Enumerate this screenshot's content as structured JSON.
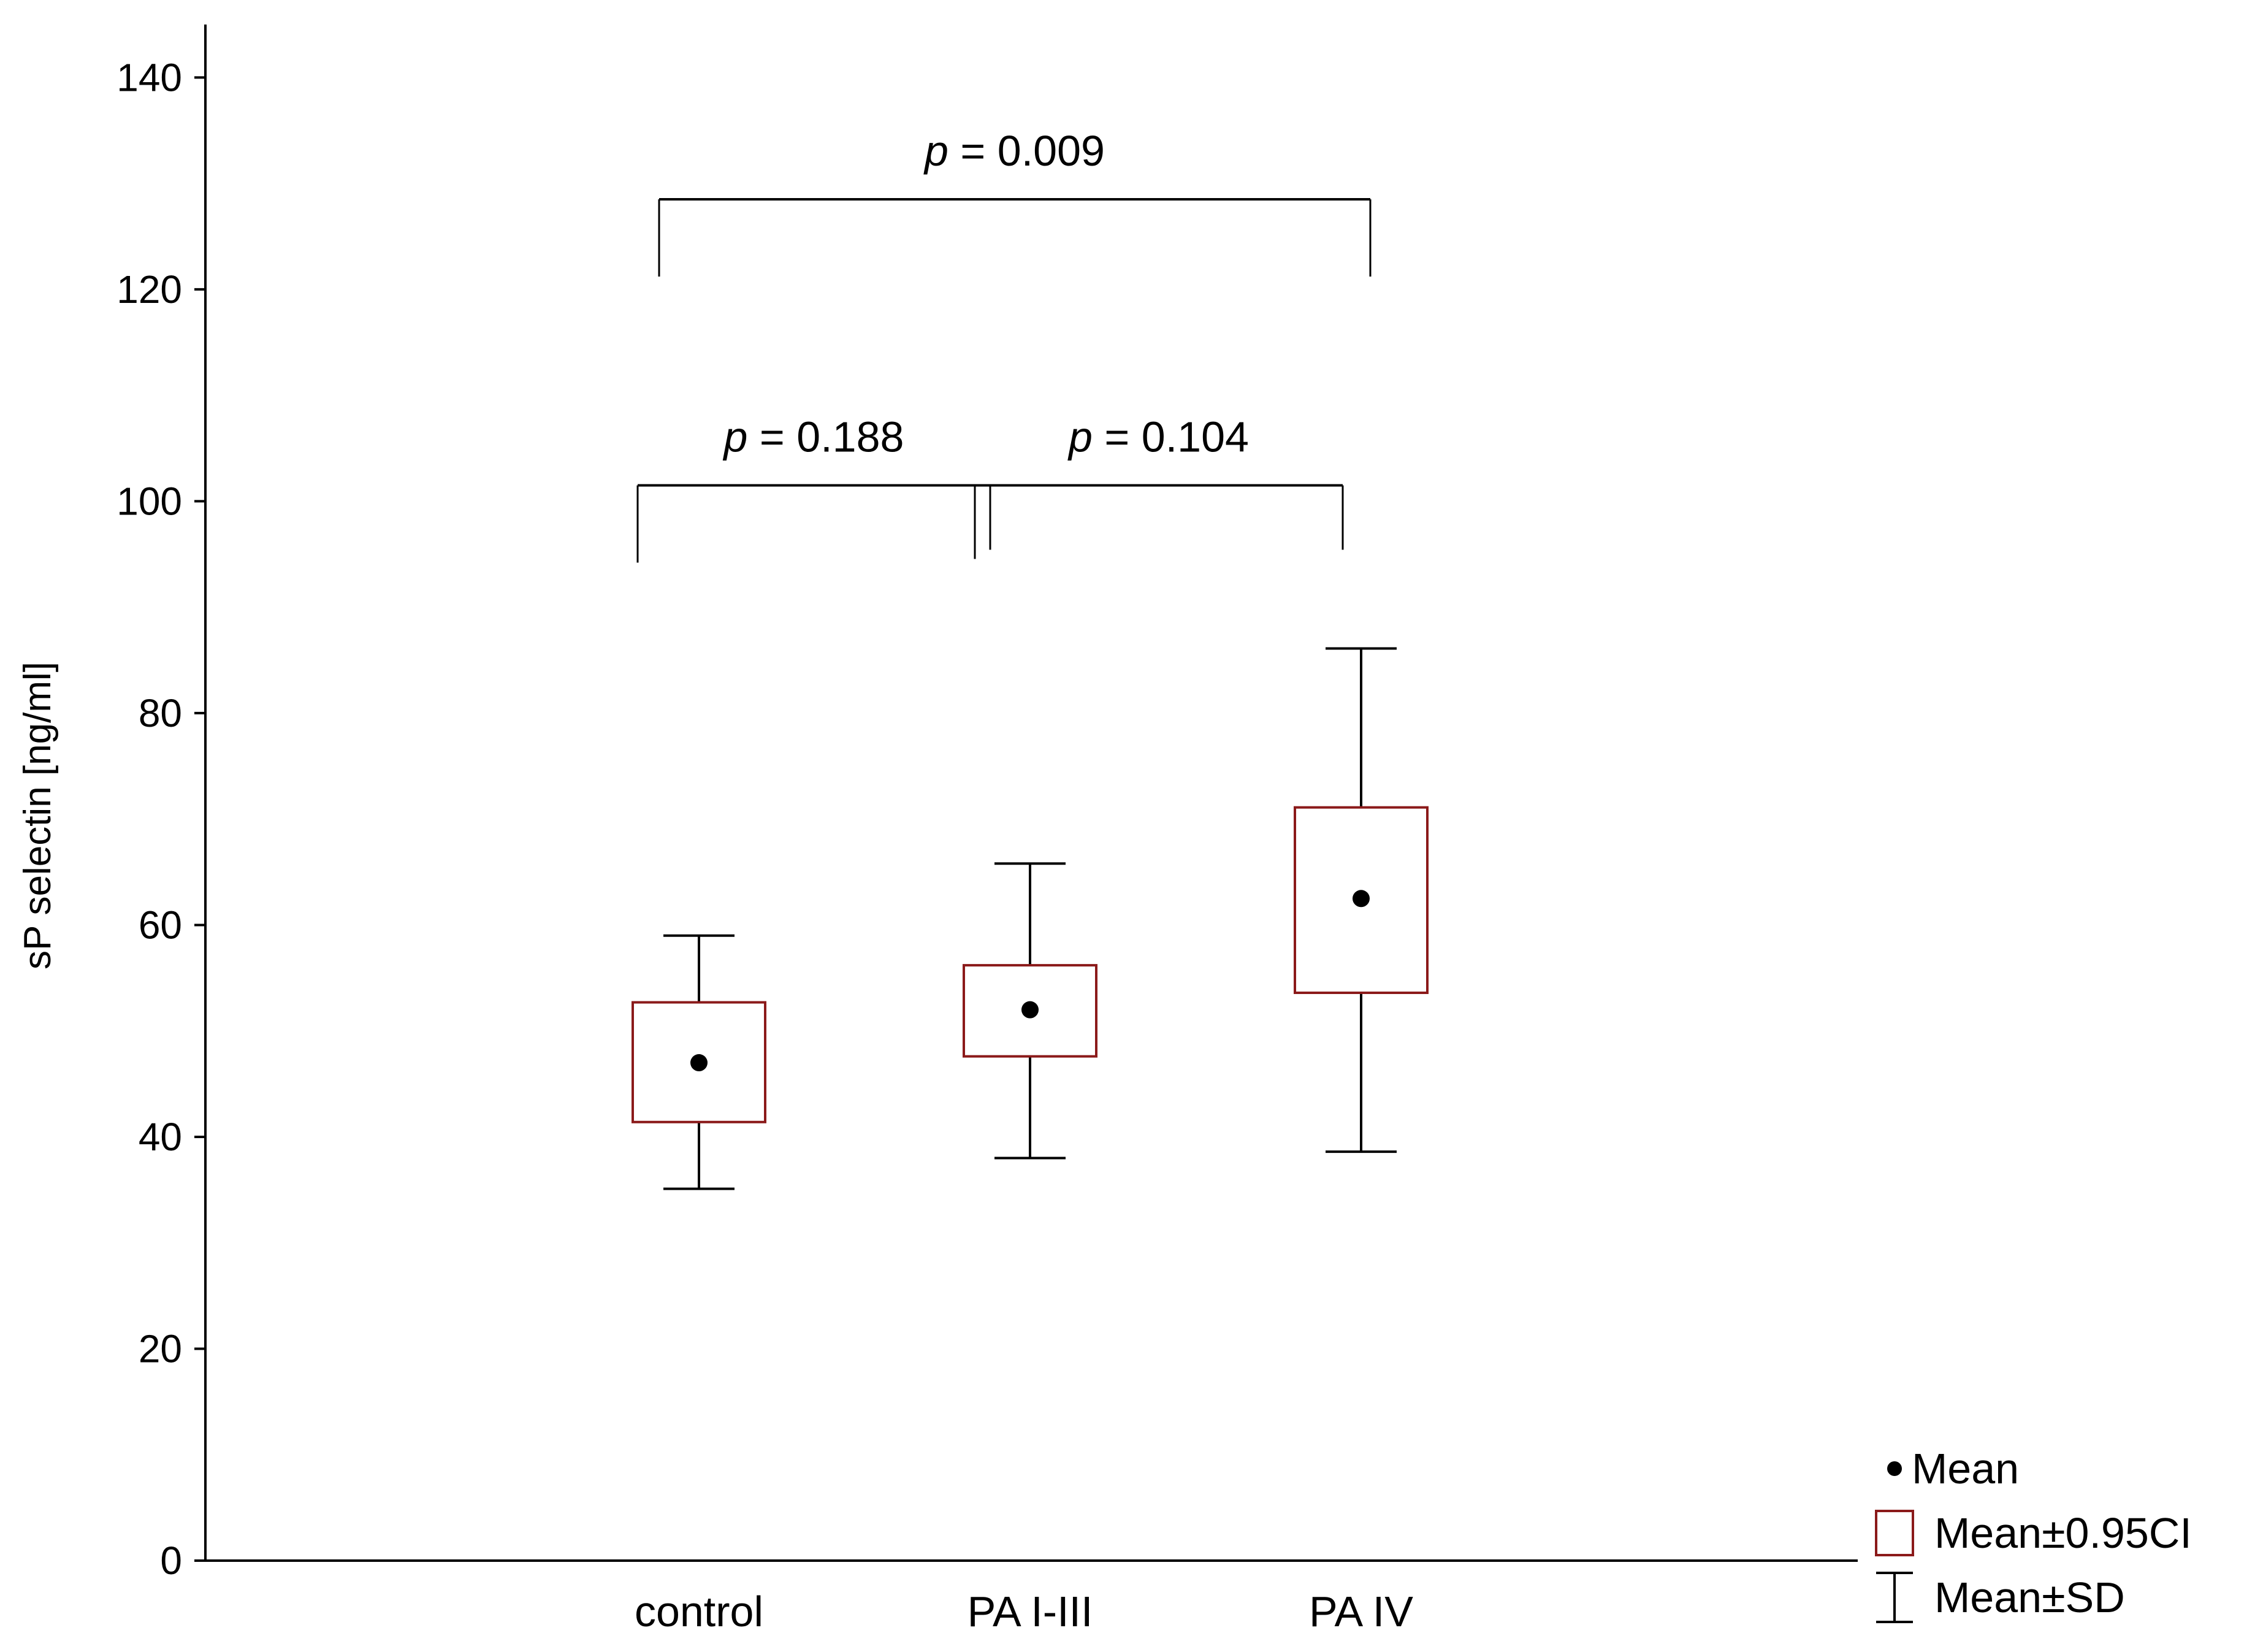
{
  "chart_data": {
    "type": "box",
    "ylabel": "sP selectin [ng/ml]",
    "xlabel": "",
    "ylim": [
      0,
      145
    ],
    "yticks": [
      0,
      20,
      40,
      60,
      80,
      100,
      120,
      140
    ],
    "categories": [
      "control",
      "PA I-III",
      "PA IV"
    ],
    "mean": [
      47.0,
      52.0,
      62.5
    ],
    "ci95": [
      [
        41.4,
        52.7
      ],
      [
        47.6,
        56.2
      ],
      [
        53.6,
        71.1
      ]
    ],
    "sd": [
      [
        35.1,
        59.0
      ],
      [
        38.0,
        65.8
      ],
      [
        38.6,
        86.1
      ]
    ],
    "colors": {
      "box": "#8b1a1a",
      "whisker": "#000000",
      "mean": "#000000"
    },
    "comparisons": [
      {
        "from": "control",
        "to": "PA IV",
        "label_prefix": "p",
        "label_value": " = 0.009",
        "bracket_y": 128.5
      },
      {
        "from": "control",
        "to": "PA I-III",
        "label_prefix": "p",
        "label_value": " = 0.188",
        "bracket_y": 101.5
      },
      {
        "from": "PA I-III",
        "to": "PA IV",
        "label_prefix": "p",
        "label_value": " = 0.104",
        "bracket_y": 101.5
      }
    ],
    "legend": {
      "position": "bottom-right",
      "items": [
        {
          "symbol": "dot",
          "label": "Mean"
        },
        {
          "symbol": "box",
          "label": "Mean±0.95CI"
        },
        {
          "symbol": "whisker",
          "label": "Mean±SD"
        }
      ]
    }
  }
}
